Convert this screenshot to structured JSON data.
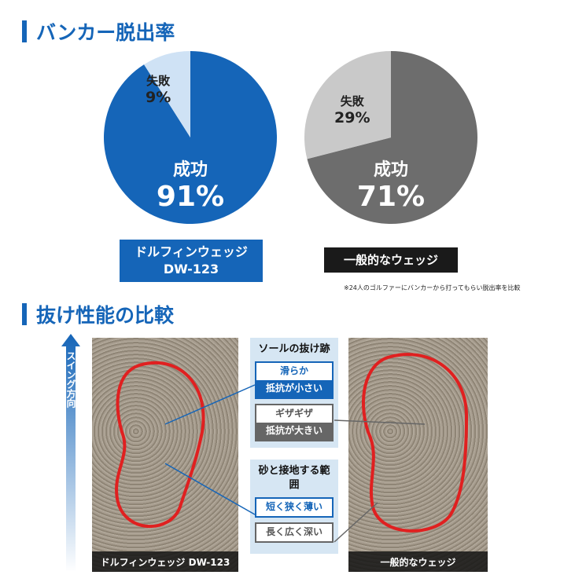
{
  "section1_title": "バンカー脱出率",
  "section2_title": "抜け性能の比較",
  "colors": {
    "brand": "#1565b8",
    "brand_light": "#cfe2f5",
    "gray_dark": "#6d6d6d",
    "gray_light": "#c9c9c9",
    "outline": "#e02020"
  },
  "chart_data": [
    {
      "type": "pie",
      "slices": [
        {
          "label": "成功",
          "value": 91,
          "display": "91%"
        },
        {
          "label": "失敗",
          "value": 9,
          "display": "9%"
        }
      ],
      "caption": [
        "ドルフィンウェッジ",
        "DW-123"
      ]
    },
    {
      "type": "pie",
      "slices": [
        {
          "label": "成功",
          "value": 71,
          "display": "71%"
        },
        {
          "label": "失敗",
          "value": 29,
          "display": "29%"
        }
      ],
      "caption": [
        "一般的なウェッジ"
      ]
    }
  ],
  "note": "※24人のゴルファーにバンカーから打ってもらい脱出率を比較",
  "swing_direction": "スイング方向",
  "photos": {
    "left_caption": "ドルフィンウェッジ DW-123",
    "right_caption": "一般的なウェッジ"
  },
  "panel1": {
    "title": "ソールの抜け跡",
    "good_top": "滑らか",
    "good_bottom": "抵抗が小さい",
    "bad_top": "ギザギザ",
    "bad_bottom": "抵抗が大きい"
  },
  "panel2": {
    "title": "砂と接地する範囲",
    "good": "短く狭く薄い",
    "bad": "長く広く深い"
  }
}
